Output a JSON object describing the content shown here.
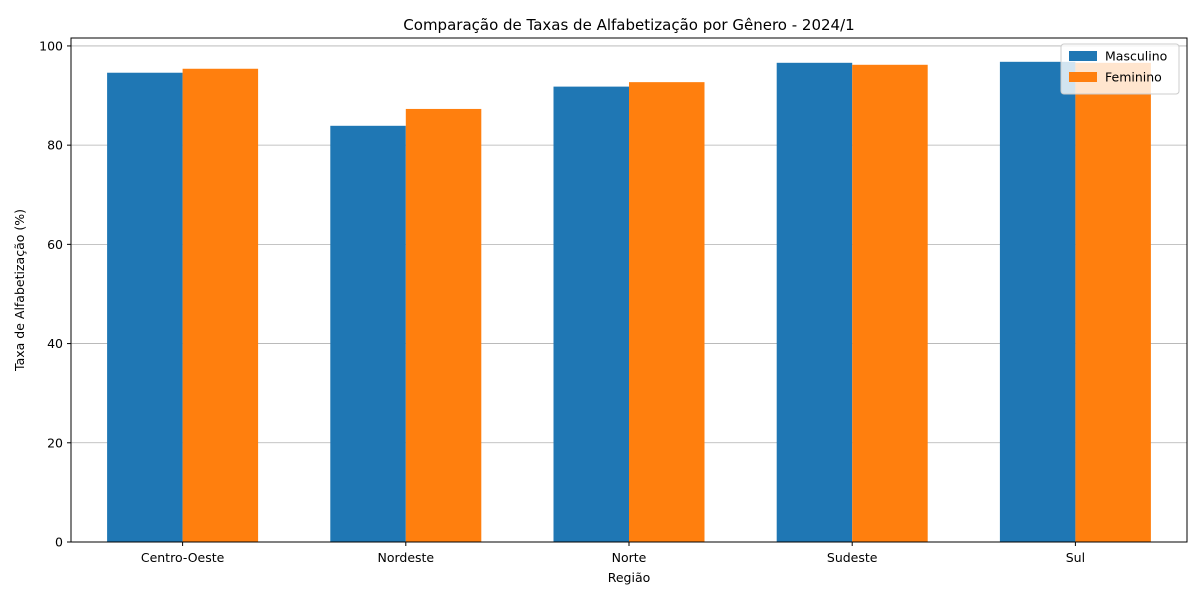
{
  "chart_data": {
    "type": "bar",
    "title": "Comparação de Taxas de Alfabetização por Gênero - 2024/1",
    "xlabel": "Região",
    "ylabel": "Taxa de Alfabetização (%)",
    "categories": [
      "Centro-Oeste",
      "Nordeste",
      "Norte",
      "Sudeste",
      "Sul"
    ],
    "series": [
      {
        "name": "Masculino",
        "color": "#1f77b4",
        "values": [
          94.6,
          83.9,
          91.8,
          96.6,
          96.8
        ]
      },
      {
        "name": "Feminino",
        "color": "#ff7f0e",
        "values": [
          95.4,
          87.3,
          92.7,
          96.2,
          96.6
        ]
      }
    ],
    "ylim": [
      0,
      101.6
    ],
    "yticks": [
      0,
      20,
      40,
      60,
      80,
      100
    ],
    "grid": "horizontal",
    "legend_position": "top-right"
  }
}
